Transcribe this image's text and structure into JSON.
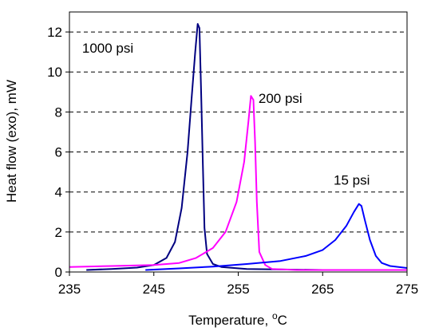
{
  "chart_data": {
    "type": "line",
    "xlabel": "Temperature, ",
    "xlabel_unit": "oC",
    "ylabel": "Heat flow (exo), mW",
    "xlim": [
      235,
      275
    ],
    "ylim": [
      0,
      13
    ],
    "xticks": [
      235,
      245,
      255,
      265,
      275
    ],
    "yticks": [
      0,
      2,
      4,
      6,
      8,
      10,
      12
    ],
    "grid": "horizontal dashed",
    "series": [
      {
        "name": "1000 psi",
        "color": "#000080",
        "x": [
          237,
          240,
          243,
          245,
          246.5,
          247.5,
          248.3,
          249.0,
          249.5,
          249.9,
          250.2,
          250.4,
          250.6,
          250.8,
          251.0,
          251.3,
          252,
          253,
          256,
          265,
          275
        ],
        "y": [
          0.1,
          0.15,
          0.22,
          0.35,
          0.7,
          1.5,
          3.2,
          6.0,
          8.8,
          11.0,
          12.4,
          12.2,
          9.0,
          5.5,
          2.2,
          0.9,
          0.4,
          0.25,
          0.15,
          0.1,
          0.1
        ]
      },
      {
        "name": "200 psi",
        "color": "#ff00ff",
        "x": [
          235,
          240,
          245,
          248,
          250,
          252,
          253.5,
          254.8,
          255.7,
          256.2,
          256.5,
          256.8,
          257.0,
          257.2,
          257.5,
          258.2,
          259,
          262,
          270,
          275
        ],
        "y": [
          0.25,
          0.3,
          0.35,
          0.45,
          0.7,
          1.2,
          2.0,
          3.5,
          5.5,
          7.5,
          8.8,
          8.6,
          6.5,
          3.5,
          1.0,
          0.35,
          0.15,
          0.1,
          0.1,
          0.1
        ]
      },
      {
        "name": "15 psi",
        "color": "#0000ff",
        "x": [
          244,
          248,
          252,
          256,
          260,
          263,
          265,
          266.5,
          267.8,
          268.7,
          269.3,
          269.6,
          270.0,
          270.6,
          271.3,
          272,
          273,
          275
        ],
        "y": [
          0.1,
          0.18,
          0.27,
          0.4,
          0.55,
          0.8,
          1.1,
          1.6,
          2.3,
          3.0,
          3.4,
          3.3,
          2.6,
          1.6,
          0.8,
          0.45,
          0.3,
          0.2
        ]
      }
    ],
    "annotations": [
      {
        "text": "1000 psi",
        "x": 236.5,
        "y": 11.2
      },
      {
        "text": "200 psi",
        "x": 257.4,
        "y": 8.7
      },
      {
        "text": "15 psi",
        "x": 266.3,
        "y": 4.6
      }
    ]
  }
}
